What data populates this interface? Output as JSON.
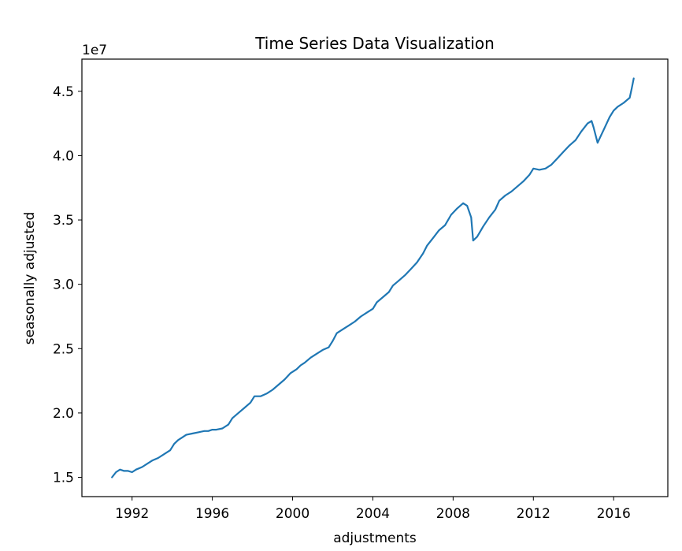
{
  "chart_data": {
    "type": "line",
    "title": "Time Series Data Visualization",
    "xlabel": "adjustments",
    "ylabel": "seasonally adjusted",
    "y_offset_label": "1e7",
    "xlim": [
      1989.5,
      2018.7
    ],
    "ylim": [
      13500000,
      47500000
    ],
    "x_ticks": [
      1992,
      1996,
      2000,
      2004,
      2008,
      2012,
      2016
    ],
    "y_ticks": [
      15000000,
      20000000,
      25000000,
      30000000,
      35000000,
      40000000,
      45000000
    ],
    "y_tick_labels": [
      "1.5",
      "2.0",
      "2.5",
      "3.0",
      "3.5",
      "4.0",
      "4.5"
    ],
    "grid": false,
    "line_color": "#1f77b4",
    "series": [
      {
        "x": [
          1991.0,
          1991.2,
          1991.4,
          1991.6,
          1991.8,
          1992.0,
          1992.2,
          1992.5,
          1992.8,
          1993.0,
          1993.3,
          1993.6,
          1993.9,
          1994.1,
          1994.3,
          1994.5,
          1994.7,
          1995.0,
          1995.3,
          1995.6,
          1995.8,
          1996.0,
          1996.2,
          1996.5,
          1996.8,
          1997.0,
          1997.3,
          1997.6,
          1997.9,
          1998.1,
          1998.4,
          1998.7,
          1999.0,
          1999.3,
          1999.6,
          1999.9,
          2000.2,
          2000.4,
          2000.6,
          2000.9,
          2001.2,
          2001.5,
          2001.8,
          2002.0,
          2002.2,
          2002.5,
          2002.8,
          2003.1,
          2003.4,
          2003.7,
          2004.0,
          2004.2,
          2004.5,
          2004.8,
          2005.0,
          2005.3,
          2005.6,
          2005.9,
          2006.2,
          2006.5,
          2006.7,
          2007.0,
          2007.3,
          2007.6,
          2007.9,
          2008.2,
          2008.5,
          2008.7,
          2008.9,
          2009.0,
          2009.2,
          2009.5,
          2009.8,
          2010.1,
          2010.3,
          2010.6,
          2010.9,
          2011.2,
          2011.5,
          2011.8,
          2012.0,
          2012.3,
          2012.6,
          2012.9,
          2013.2,
          2013.5,
          2013.8,
          2014.1,
          2014.4,
          2014.7,
          2014.9,
          2015.0,
          2015.2,
          2015.5,
          2015.8,
          2016.0,
          2016.2,
          2016.5,
          2016.8,
          2016.9,
          2017.0
        ],
        "y": [
          15000000,
          15400000,
          15600000,
          15500000,
          15500000,
          15400000,
          15600000,
          15800000,
          16100000,
          16300000,
          16500000,
          16800000,
          17100000,
          17600000,
          17900000,
          18100000,
          18300000,
          18400000,
          18500000,
          18600000,
          18600000,
          18700000,
          18700000,
          18800000,
          19100000,
          19600000,
          20000000,
          20400000,
          20800000,
          21300000,
          21300000,
          21500000,
          21800000,
          22200000,
          22600000,
          23100000,
          23400000,
          23700000,
          23900000,
          24300000,
          24600000,
          24900000,
          25100000,
          25600000,
          26200000,
          26500000,
          26800000,
          27100000,
          27500000,
          27800000,
          28100000,
          28600000,
          29000000,
          29400000,
          29900000,
          30300000,
          30700000,
          31200000,
          31700000,
          32400000,
          33000000,
          33600000,
          34200000,
          34600000,
          35400000,
          35900000,
          36300000,
          36100000,
          35200000,
          33400000,
          33700000,
          34500000,
          35200000,
          35800000,
          36500000,
          36900000,
          37200000,
          37600000,
          38000000,
          38500000,
          39000000,
          38900000,
          39000000,
          39300000,
          39800000,
          40300000,
          40800000,
          41200000,
          41900000,
          42500000,
          42700000,
          42200000,
          41000000,
          42000000,
          43000000,
          43500000,
          43800000,
          44100000,
          44500000,
          45200000,
          46000000
        ]
      }
    ]
  }
}
